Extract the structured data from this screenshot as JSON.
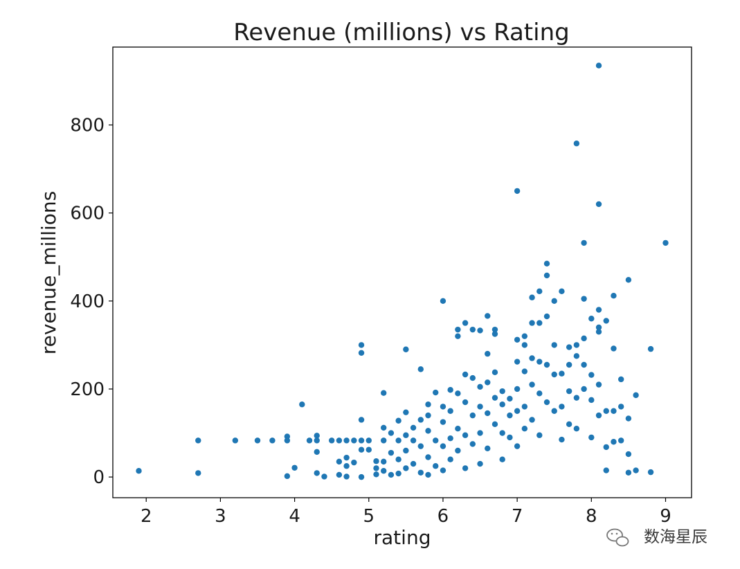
{
  "chart_data": {
    "type": "scatter",
    "title": "Revenue (millions) vs Rating",
    "xlabel": "rating",
    "ylabel": "revenue_millions",
    "xlim": [
      1.55,
      9.35
    ],
    "ylim": [
      -47,
      977
    ],
    "xticks": [
      2,
      3,
      4,
      5,
      6,
      7,
      8,
      9
    ],
    "yticks": [
      0,
      200,
      400,
      600,
      800
    ],
    "grid": false,
    "marker_color": "#1f77b4",
    "points": [
      [
        1.9,
        14
      ],
      [
        2.7,
        83
      ],
      [
        2.7,
        9
      ],
      [
        3.2,
        83
      ],
      [
        3.5,
        83
      ],
      [
        3.7,
        83
      ],
      [
        3.9,
        92
      ],
      [
        3.9,
        83
      ],
      [
        3.9,
        2
      ],
      [
        4.0,
        21
      ],
      [
        4.1,
        165
      ],
      [
        4.2,
        83
      ],
      [
        4.3,
        94
      ],
      [
        4.3,
        83
      ],
      [
        4.3,
        57
      ],
      [
        4.3,
        9
      ],
      [
        4.4,
        1
      ],
      [
        4.5,
        83
      ],
      [
        4.6,
        83
      ],
      [
        4.6,
        35
      ],
      [
        4.6,
        5
      ],
      [
        4.7,
        83
      ],
      [
        4.7,
        44
      ],
      [
        4.7,
        25
      ],
      [
        4.7,
        1
      ],
      [
        4.8,
        83
      ],
      [
        4.8,
        33
      ],
      [
        4.9,
        300
      ],
      [
        4.9,
        282
      ],
      [
        4.9,
        130
      ],
      [
        4.9,
        83
      ],
      [
        4.9,
        62
      ],
      [
        4.9,
        0
      ],
      [
        5.0,
        83
      ],
      [
        5.0,
        62
      ],
      [
        5.1,
        36
      ],
      [
        5.1,
        20
      ],
      [
        5.1,
        6
      ],
      [
        5.2,
        191
      ],
      [
        5.2,
        112
      ],
      [
        5.2,
        83
      ],
      [
        5.2,
        35
      ],
      [
        5.2,
        14
      ],
      [
        5.3,
        100
      ],
      [
        5.3,
        55
      ],
      [
        5.3,
        5
      ],
      [
        5.4,
        128
      ],
      [
        5.4,
        83
      ],
      [
        5.4,
        40
      ],
      [
        5.4,
        8
      ],
      [
        5.5,
        290
      ],
      [
        5.5,
        147
      ],
      [
        5.5,
        95
      ],
      [
        5.5,
        60
      ],
      [
        5.5,
        20
      ],
      [
        5.6,
        112
      ],
      [
        5.6,
        83
      ],
      [
        5.6,
        30
      ],
      [
        5.7,
        245
      ],
      [
        5.7,
        130
      ],
      [
        5.7,
        70
      ],
      [
        5.7,
        10
      ],
      [
        5.8,
        165
      ],
      [
        5.8,
        140
      ],
      [
        5.8,
        105
      ],
      [
        5.8,
        45
      ],
      [
        5.8,
        5
      ],
      [
        5.9,
        192
      ],
      [
        5.9,
        83
      ],
      [
        5.9,
        25
      ],
      [
        6.0,
        400
      ],
      [
        6.0,
        160
      ],
      [
        6.0,
        125
      ],
      [
        6.0,
        70
      ],
      [
        6.0,
        15
      ],
      [
        6.1,
        198
      ],
      [
        6.1,
        150
      ],
      [
        6.1,
        88
      ],
      [
        6.1,
        40
      ],
      [
        6.2,
        335
      ],
      [
        6.2,
        320
      ],
      [
        6.2,
        190
      ],
      [
        6.2,
        110
      ],
      [
        6.2,
        60
      ],
      [
        6.3,
        350
      ],
      [
        6.3,
        233
      ],
      [
        6.3,
        170
      ],
      [
        6.3,
        95
      ],
      [
        6.3,
        20
      ],
      [
        6.4,
        335
      ],
      [
        6.4,
        225
      ],
      [
        6.4,
        140
      ],
      [
        6.4,
        75
      ],
      [
        6.5,
        333
      ],
      [
        6.5,
        205
      ],
      [
        6.5,
        160
      ],
      [
        6.5,
        100
      ],
      [
        6.5,
        30
      ],
      [
        6.6,
        366
      ],
      [
        6.6,
        280
      ],
      [
        6.6,
        215
      ],
      [
        6.6,
        145
      ],
      [
        6.6,
        65
      ],
      [
        6.7,
        335
      ],
      [
        6.7,
        325
      ],
      [
        6.7,
        238
      ],
      [
        6.7,
        180
      ],
      [
        6.7,
        120
      ],
      [
        6.8,
        195
      ],
      [
        6.8,
        165
      ],
      [
        6.8,
        100
      ],
      [
        6.8,
        40
      ],
      [
        6.9,
        178
      ],
      [
        6.9,
        140
      ],
      [
        6.9,
        90
      ],
      [
        7.0,
        650
      ],
      [
        7.0,
        312
      ],
      [
        7.0,
        262
      ],
      [
        7.0,
        200
      ],
      [
        7.0,
        150
      ],
      [
        7.0,
        70
      ],
      [
        7.1,
        320
      ],
      [
        7.1,
        300
      ],
      [
        7.1,
        240
      ],
      [
        7.1,
        160
      ],
      [
        7.1,
        110
      ],
      [
        7.2,
        408
      ],
      [
        7.2,
        350
      ],
      [
        7.2,
        270
      ],
      [
        7.2,
        210
      ],
      [
        7.2,
        130
      ],
      [
        7.3,
        422
      ],
      [
        7.3,
        350
      ],
      [
        7.3,
        262
      ],
      [
        7.3,
        190
      ],
      [
        7.3,
        95
      ],
      [
        7.4,
        485
      ],
      [
        7.4,
        458
      ],
      [
        7.4,
        365
      ],
      [
        7.4,
        255
      ],
      [
        7.4,
        170
      ],
      [
        7.5,
        400
      ],
      [
        7.5,
        300
      ],
      [
        7.5,
        233
      ],
      [
        7.5,
        150
      ],
      [
        7.6,
        422
      ],
      [
        7.6,
        235
      ],
      [
        7.6,
        160
      ],
      [
        7.6,
        85
      ],
      [
        7.7,
        295
      ],
      [
        7.7,
        255
      ],
      [
        7.7,
        195
      ],
      [
        7.7,
        120
      ],
      [
        7.8,
        758
      ],
      [
        7.8,
        300
      ],
      [
        7.8,
        275
      ],
      [
        7.8,
        180
      ],
      [
        7.8,
        110
      ],
      [
        7.9,
        532
      ],
      [
        7.9,
        405
      ],
      [
        7.9,
        315
      ],
      [
        7.9,
        255
      ],
      [
        7.9,
        200
      ],
      [
        8.0,
        360
      ],
      [
        8.0,
        232
      ],
      [
        8.0,
        175
      ],
      [
        8.0,
        90
      ],
      [
        8.1,
        935
      ],
      [
        8.1,
        620
      ],
      [
        8.1,
        380
      ],
      [
        8.1,
        340
      ],
      [
        8.1,
        330
      ],
      [
        8.1,
        210
      ],
      [
        8.1,
        140
      ],
      [
        8.2,
        355
      ],
      [
        8.2,
        150
      ],
      [
        8.2,
        68
      ],
      [
        8.2,
        15
      ],
      [
        8.3,
        412
      ],
      [
        8.3,
        292
      ],
      [
        8.3,
        150
      ],
      [
        8.3,
        80
      ],
      [
        8.4,
        222
      ],
      [
        8.4,
        160
      ],
      [
        8.4,
        83
      ],
      [
        8.5,
        448
      ],
      [
        8.5,
        133
      ],
      [
        8.5,
        52
      ],
      [
        8.5,
        10
      ],
      [
        8.6,
        186
      ],
      [
        8.6,
        15
      ],
      [
        8.8,
        291
      ],
      [
        8.8,
        11
      ],
      [
        9.0,
        532
      ]
    ]
  },
  "watermark": {
    "text": "数海星辰",
    "icon": "wechat-icon"
  }
}
